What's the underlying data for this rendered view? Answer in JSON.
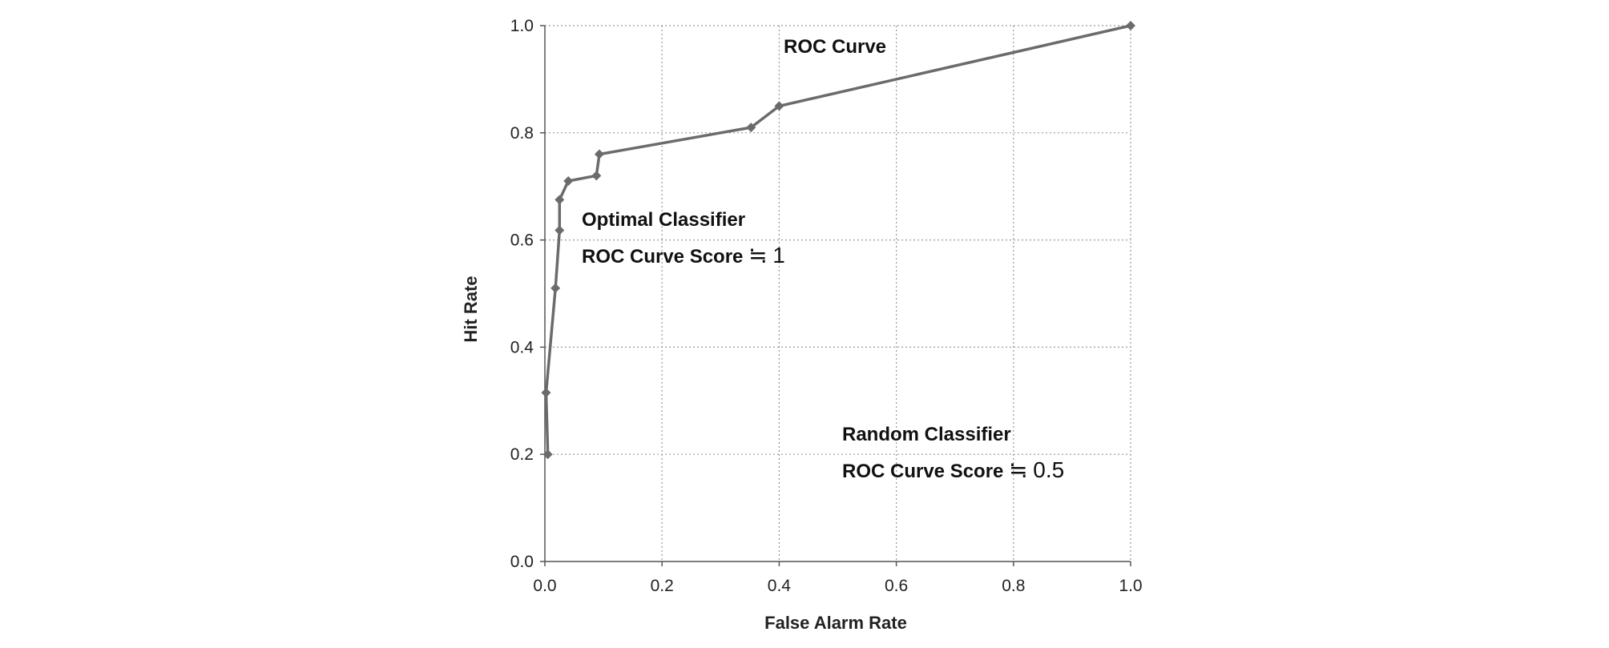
{
  "chart_data": {
    "type": "line",
    "xlabel": "False Alarm Rate",
    "ylabel": "Hit Rate",
    "xlim": [
      0,
      1
    ],
    "ylim": [
      0,
      1
    ],
    "x_ticks": [
      "0.0",
      "0.2",
      "0.4",
      "0.6",
      "0.8",
      "1.0"
    ],
    "y_ticks": [
      "0.0",
      "0.2",
      "0.4",
      "0.6",
      "0.8",
      "1.0"
    ],
    "grid": true,
    "grid_style": "dotted",
    "line_color": "#6b6b6b",
    "series": [
      {
        "x": [
          0.005,
          0.002,
          0.018,
          0.025,
          0.025,
          0.04,
          0.088,
          0.093,
          0.352,
          0.4,
          1.0
        ],
        "y": [
          0.2,
          0.315,
          0.51,
          0.618,
          0.675,
          0.71,
          0.72,
          0.76,
          0.81,
          0.85,
          1.0
        ]
      }
    ],
    "annotations": {
      "roc_curve": "ROC Curve",
      "optimal_title": "Optimal Classifier",
      "optimal_score_label": "ROC Curve Score",
      "optimal_score_sign": "≒",
      "optimal_score_value": "1",
      "random_title": "Random Classifier",
      "random_score_label": "ROC Curve Score",
      "random_score_sign": "≒",
      "random_score_value": "0.5"
    }
  }
}
